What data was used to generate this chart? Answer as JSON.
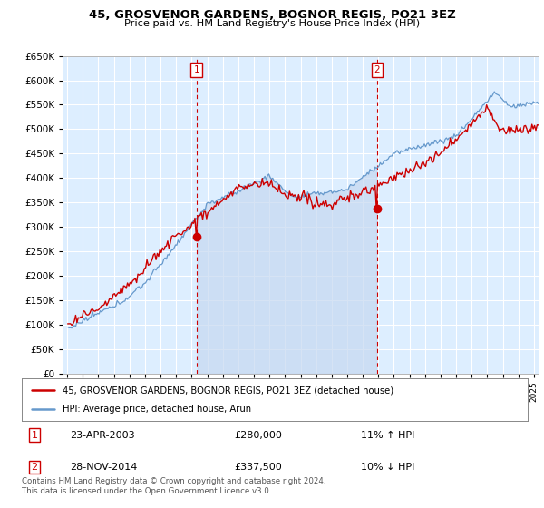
{
  "title": "45, GROSVENOR GARDENS, BOGNOR REGIS, PO21 3EZ",
  "subtitle": "Price paid vs. HM Land Registry's House Price Index (HPI)",
  "legend_line1": "45, GROSVENOR GARDENS, BOGNOR REGIS, PO21 3EZ (detached house)",
  "legend_line2": "HPI: Average price, detached house, Arun",
  "annotation1": {
    "label": "1",
    "date": "23-APR-2003",
    "price": "£280,000",
    "hpi": "11% ↑ HPI"
  },
  "annotation2": {
    "label": "2",
    "date": "28-NOV-2014",
    "price": "£337,500",
    "hpi": "10% ↓ HPI"
  },
  "footnote1": "Contains HM Land Registry data © Crown copyright and database right 2024.",
  "footnote2": "This data is licensed under the Open Government Licence v3.0.",
  "line_color_red": "#cc0000",
  "line_color_blue": "#6699cc",
  "fill_color": "#ddeeff",
  "marker1_x": 2003.31,
  "marker2_x": 2014.91,
  "marker1_y": 280000,
  "marker2_y": 337500,
  "ylim": [
    0,
    650000
  ],
  "xlim": [
    1994.7,
    2025.3
  ],
  "background_color": "#ddeeff",
  "grid_color": "#ffffff"
}
